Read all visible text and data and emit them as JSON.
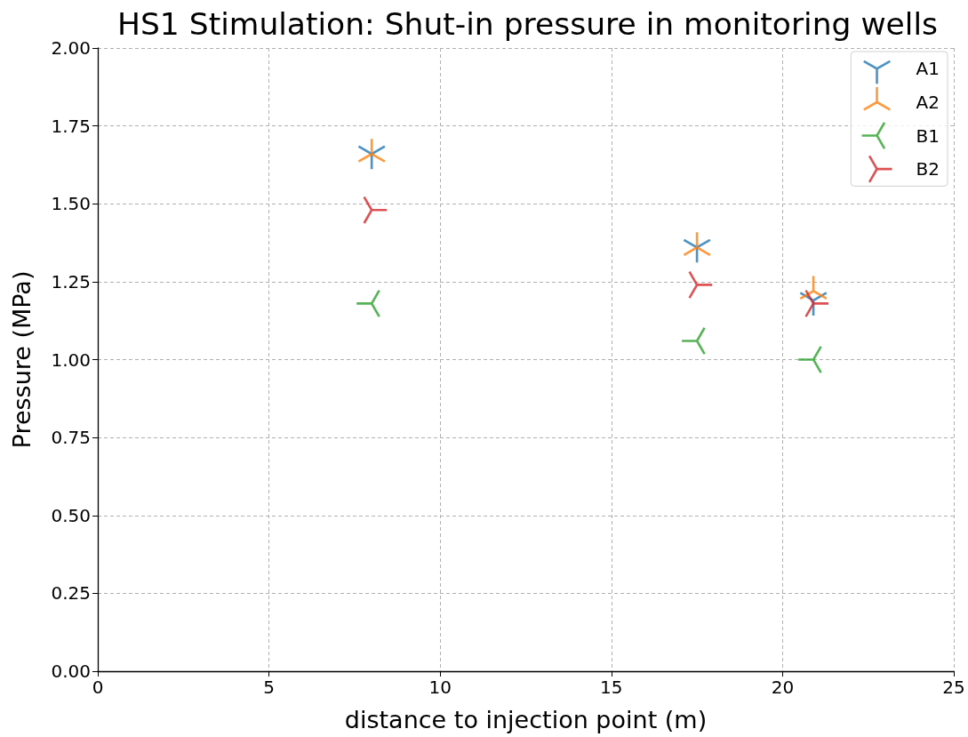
{
  "chart_data": {
    "type": "scatter",
    "title": "HS1 Stimulation: Shut-in pressure in monitoring wells",
    "xlabel": "distance to injection point (m)",
    "ylabel": "Pressure (MPa)",
    "series": [
      {
        "name": "A1",
        "color": "#1f77b4",
        "x": [
          8.0,
          17.5,
          20.9
        ],
        "values": [
          1.66,
          1.36,
          1.19
        ]
      },
      {
        "name": "A2",
        "color": "#ff7f0e",
        "x": [
          8.0,
          17.5,
          20.9
        ],
        "values": [
          1.66,
          1.36,
          1.22
        ]
      },
      {
        "name": "B1",
        "color": "#2ca02c",
        "x": [
          8.0,
          17.5,
          20.9
        ],
        "values": [
          1.18,
          1.06,
          1.0
        ]
      },
      {
        "name": "B2",
        "color": "#d62728",
        "x": [
          8.0,
          17.5,
          20.9
        ],
        "values": [
          1.48,
          1.24,
          1.18
        ]
      }
    ],
    "xlim": [
      0,
      25
    ],
    "xticks": [
      0,
      5,
      10,
      15,
      20,
      25
    ],
    "ylim": [
      0,
      2.0
    ],
    "yticks": [
      {
        "value": 0,
        "label": "0.00"
      },
      {
        "value": 0.25,
        "label": "0.25"
      },
      {
        "value": 0.5,
        "label": "0.50"
      },
      {
        "value": 0.75,
        "label": "0.75"
      },
      {
        "value": 1.0,
        "label": "1.00"
      },
      {
        "value": 1.25,
        "label": "1.25"
      },
      {
        "value": 1.5,
        "label": "1.50"
      },
      {
        "value": 1.75,
        "label": "1.75"
      },
      {
        "value": 2.0,
        "label": "2.00"
      }
    ],
    "grid": true,
    "legend": "top right"
  }
}
